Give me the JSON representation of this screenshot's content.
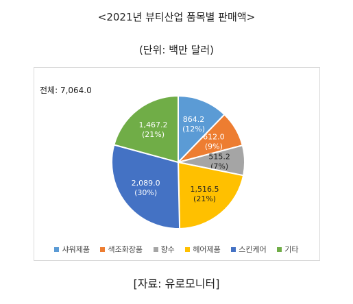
{
  "title": "<2021년 뷰티산업 품목별 판매액>",
  "subtitle": "(단위: 백만 달러)",
  "total_label": "전체: 7,064.0",
  "source": "[자료: 유로모니터]",
  "chart_data": {
    "type": "pie",
    "start_angle_deg": 0,
    "direction": "clockwise",
    "slices": [
      {
        "label": "샤워제품",
        "value": 864.2,
        "value_text": "864.2",
        "pct_text": "(12%)",
        "color": "#5b9bd5"
      },
      {
        "label": "색조화장품",
        "value": 612.0,
        "value_text": "612.0",
        "pct_text": "(9%)",
        "color": "#ed7d31"
      },
      {
        "label": "향수",
        "value": 515.2,
        "value_text": "515.2",
        "pct_text": "(7%)",
        "color": "#a5a5a5"
      },
      {
        "label": "헤어제품",
        "value": 1516.5,
        "value_text": "1,516.5",
        "pct_text": "(21%)",
        "color": "#ffc000"
      },
      {
        "label": "스킨케어",
        "value": 2089.0,
        "value_text": "2,089.0",
        "pct_text": "(30%)",
        "color": "#4472c4"
      },
      {
        "label": "기타",
        "value": 1467.2,
        "value_text": "1,467.2",
        "pct_text": "(21%)",
        "color": "#70ad47"
      }
    ],
    "legend_position": "bottom"
  }
}
